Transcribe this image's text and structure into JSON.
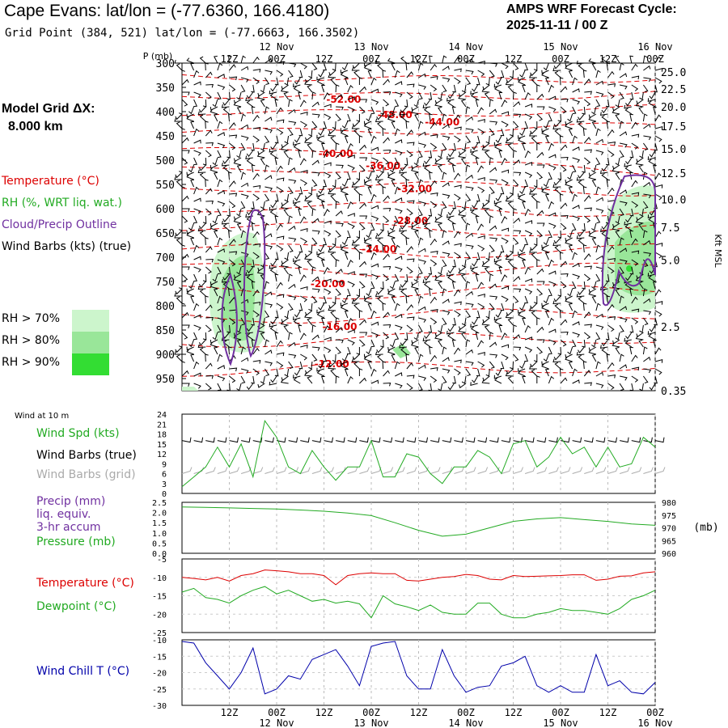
{
  "header": {
    "title": "Cape Evans:  lat/lon = (-77.6360, 166.4180)",
    "subtitle": "Grid Point (384, 521) lat/lon = (-77.6663, 166.3502)",
    "cycle_label": "AMPS WRF Forecast Cycle:",
    "cycle_value": "2025-11-11 / 00  Z"
  },
  "model": {
    "grid_label": "Model Grid ΔX:",
    "grid_value": "8.000 km"
  },
  "legend": {
    "temperature": "Temperature (°C)",
    "rh": "RH (%, WRT liq. wat.)",
    "cloud": "Cloud/Precip Outline",
    "wind": "Wind Barbs (kts) (true)",
    "rh70": "RH > 70%",
    "rh80": "RH > 80%",
    "rh90": "RH > 90%"
  },
  "colors": {
    "temperature": "#dd0000",
    "rh": "#22aa22",
    "cloud": "#7030a0",
    "wind_chill": "#0000aa",
    "grey": "#aaaaaa",
    "rh70": "#ccf5cc",
    "rh80": "#99e699",
    "rh90": "#33dd33"
  },
  "time_axis": {
    "hour_labels": [
      "12Z",
      "00Z",
      "12Z",
      "00Z",
      "12Z",
      "00Z",
      "12Z",
      "00Z",
      "12Z",
      "00Z"
    ],
    "hour_positions": [
      12,
      24,
      36,
      48,
      60,
      72,
      84,
      96,
      108,
      120
    ],
    "day_labels": [
      "12 Nov",
      "13 Nov",
      "14 Nov",
      "15 Nov",
      "16 Nov"
    ],
    "day_positions": [
      24,
      48,
      72,
      96,
      120
    ]
  },
  "chart_data": [
    {
      "type": "contour",
      "name": "cross_section",
      "ylabel": "P (mb)",
      "ylabel_right": "Kft MSL",
      "pressure_ticks": [
        300,
        350,
        400,
        450,
        500,
        550,
        600,
        650,
        700,
        750,
        800,
        850,
        900,
        950
      ],
      "ylim": [
        300,
        975
      ],
      "height_ticks": [
        "25.0",
        "22.5",
        "20.0",
        "17.5",
        "15.0",
        "12.5",
        "10.0",
        "7.5",
        "5.0",
        "2.5",
        "0.35"
      ],
      "height_tick_pressures": [
        318,
        353,
        390,
        430,
        477,
        527,
        581,
        638,
        706,
        843,
        975
      ],
      "temp_labels": [
        {
          "text": "-52.00",
          "t": 41,
          "p": 375
        },
        {
          "text": "-48.00",
          "t": 54,
          "p": 407
        },
        {
          "text": "-44.00",
          "t": 66,
          "p": 422
        },
        {
          "text": "-40.00",
          "t": 39,
          "p": 487
        },
        {
          "text": "-36.00",
          "t": 51,
          "p": 512
        },
        {
          "text": "-32.00",
          "t": 59,
          "p": 559
        },
        {
          "text": "-28.00",
          "t": 58,
          "p": 625
        },
        {
          "text": "-24.00",
          "t": 50,
          "p": 683
        },
        {
          "text": "-20.00",
          "t": 37,
          "p": 755
        },
        {
          "text": "-16.00",
          "t": 40,
          "p": 843
        },
        {
          "text": "-12.00",
          "t": 38,
          "p": 920
        }
      ]
    },
    {
      "type": "line",
      "name": "wind_10m",
      "title": "Wind at 10 m",
      "labels": [
        "Wind Spd (kts)",
        "Wind Barbs (true)",
        "Wind Barbs (grid)"
      ],
      "ylim": [
        0,
        24
      ],
      "yticks": [
        0,
        3,
        6,
        9,
        12,
        15,
        18,
        21,
        24
      ],
      "series": [
        {
          "name": "Wind Spd (kts)",
          "x": [
            0,
            3,
            6,
            9,
            12,
            15,
            18,
            21,
            24,
            27,
            30,
            33,
            36,
            39,
            42,
            45,
            48,
            51,
            54,
            57,
            60,
            63,
            66,
            69,
            72,
            75,
            78,
            81,
            84,
            87,
            90,
            93,
            96,
            99,
            102,
            105,
            108,
            111,
            114,
            117,
            120
          ],
          "values": [
            2,
            5,
            8,
            14,
            8,
            15,
            5,
            22,
            17,
            8,
            6,
            13,
            8,
            4,
            8,
            8,
            16,
            5,
            5,
            12,
            11,
            6,
            3,
            8,
            8,
            13,
            11,
            6,
            15,
            16,
            8,
            11,
            17,
            12,
            14,
            8,
            14,
            8,
            9,
            17,
            14
          ]
        }
      ]
    },
    {
      "type": "line",
      "name": "precip_pressure",
      "labels": [
        "Precip (mm)",
        "liq. equiv.",
        "3-hr accum",
        "Pressure (mb)"
      ],
      "ylim_left": [
        0,
        2.5
      ],
      "yticks_left": [
        "0.0",
        "0.5",
        "1.0",
        "1.5",
        "2.0",
        "2.5"
      ],
      "ylim_right": [
        960,
        980
      ],
      "yticks_right": [
        "980",
        "975",
        "970",
        "965",
        "960"
      ],
      "ylabel_right": "(mb)",
      "series": [
        {
          "name": "Pressure (mb)",
          "x": [
            0,
            6,
            12,
            18,
            24,
            30,
            36,
            42,
            48,
            54,
            60,
            66,
            72,
            78,
            84,
            90,
            96,
            102,
            108,
            114,
            120
          ],
          "values": [
            978.2,
            978,
            977.8,
            977.6,
            977.4,
            977,
            976.5,
            975.8,
            974.8,
            972,
            969,
            966.7,
            967.5,
            970,
            972.5,
            973.5,
            974,
            973.2,
            972.5,
            971.5,
            971
          ]
        }
      ]
    },
    {
      "type": "line",
      "name": "temperature_dewpoint",
      "labels": [
        "Temperature (°C)",
        "Dewpoint (°C)"
      ],
      "ylim": [
        -25,
        -5
      ],
      "yticks": [
        "-5",
        "-10",
        "-15",
        "-20",
        "-25"
      ],
      "series": [
        {
          "name": "Temperature (°C)",
          "x": [
            0,
            3,
            6,
            9,
            12,
            15,
            18,
            21,
            24,
            27,
            30,
            33,
            36,
            39,
            42,
            45,
            48,
            51,
            54,
            57,
            60,
            63,
            66,
            69,
            72,
            75,
            78,
            81,
            84,
            87,
            90,
            93,
            96,
            99,
            102,
            105,
            108,
            111,
            114,
            117,
            120
          ],
          "values": [
            -10,
            -10.3,
            -10.7,
            -10,
            -11,
            -9.5,
            -9,
            -8,
            -8.2,
            -8.5,
            -9,
            -9,
            -9.5,
            -12,
            -9.5,
            -9,
            -8.8,
            -9,
            -9,
            -10.8,
            -11,
            -10.5,
            -10,
            -9.8,
            -9.2,
            -9.5,
            -10.5,
            -10.7,
            -9.5,
            -9.8,
            -9.7,
            -9.6,
            -9.5,
            -9.3,
            -9.3,
            -10.8,
            -10.5,
            -9.7,
            -9.6,
            -8.8,
            -8.5
          ]
        },
        {
          "name": "Dewpoint (°C)",
          "x": [
            0,
            3,
            6,
            9,
            12,
            15,
            18,
            21,
            24,
            27,
            30,
            33,
            36,
            39,
            42,
            45,
            48,
            51,
            54,
            57,
            60,
            63,
            66,
            69,
            72,
            75,
            78,
            81,
            84,
            87,
            90,
            93,
            96,
            99,
            102,
            105,
            108,
            111,
            114,
            117,
            120
          ],
          "values": [
            -14,
            -13,
            -15.5,
            -16,
            -17,
            -15,
            -13.5,
            -12.5,
            -14.5,
            -13.5,
            -15,
            -16.5,
            -16,
            -17,
            -16.5,
            -17.2,
            -21,
            -15,
            -17.2,
            -18,
            -19,
            -17.5,
            -19.5,
            -20,
            -20,
            -17,
            -17,
            -20,
            -21,
            -21,
            -20,
            -19.5,
            -18.5,
            -19,
            -19,
            -19.5,
            -20,
            -18.5,
            -16,
            -15,
            -13.5
          ]
        }
      ]
    },
    {
      "type": "line",
      "name": "wind_chill",
      "labels": [
        "Wind Chill T (°C)"
      ],
      "ylim": [
        -30,
        -10
      ],
      "yticks": [
        "-10",
        "-15",
        "-20",
        "-25",
        "-30"
      ],
      "series": [
        {
          "name": "Wind Chill T (°C)",
          "x": [
            0,
            3,
            6,
            9,
            12,
            15,
            18,
            21,
            24,
            27,
            30,
            33,
            36,
            39,
            42,
            45,
            48,
            51,
            54,
            57,
            60,
            63,
            66,
            69,
            72,
            75,
            78,
            81,
            84,
            87,
            90,
            93,
            96,
            99,
            102,
            105,
            108,
            111,
            114,
            117,
            120
          ],
          "values": [
            -10.5,
            -11,
            -17,
            -21,
            -25,
            -20,
            -12.5,
            -26.5,
            -25,
            -21,
            -22,
            -16,
            -14.5,
            -13,
            -18,
            -24,
            -12,
            -11,
            -10.5,
            -21,
            -25,
            -25,
            -13,
            -21,
            -26,
            -24.5,
            -24,
            -18,
            -17,
            -15,
            -24,
            -26,
            -24,
            -26,
            -26,
            -14.5,
            -24,
            -22.5,
            -26,
            -26.5,
            -23
          ]
        }
      ]
    }
  ]
}
